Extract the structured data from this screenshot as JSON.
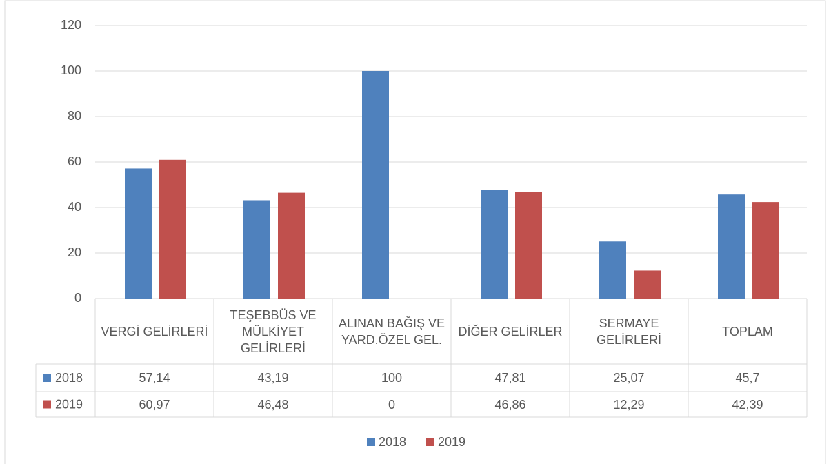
{
  "chart_data": {
    "type": "bar",
    "categories": [
      "VERGİ GELİRLERİ",
      "TEŞEBBÜS VE MÜLKİYET GELİRLERİ",
      "ALINAN BAĞIŞ VE YARD.ÖZEL GEL.",
      "DİĞER GELİRLER",
      "SERMAYE GELİRLERİ",
      "TOPLAM"
    ],
    "series": [
      {
        "name": "2018",
        "color": "#4f81bd",
        "values": [
          57.14,
          43.19,
          100,
          47.81,
          25.07,
          45.7
        ],
        "value_labels": [
          "57,14",
          "43,19",
          "100",
          "47,81",
          "25,07",
          "45,7"
        ]
      },
      {
        "name": "2019",
        "color": "#c0504d",
        "values": [
          60.97,
          46.48,
          0,
          46.86,
          12.29,
          42.39
        ],
        "value_labels": [
          "60,97",
          "46,48",
          "0",
          "46,86",
          "12,29",
          "42,39"
        ]
      }
    ],
    "ylim": [
      0,
      120
    ],
    "yticks": [
      0,
      20,
      40,
      60,
      80,
      100,
      120
    ],
    "grid": true,
    "legend": "bottom"
  }
}
